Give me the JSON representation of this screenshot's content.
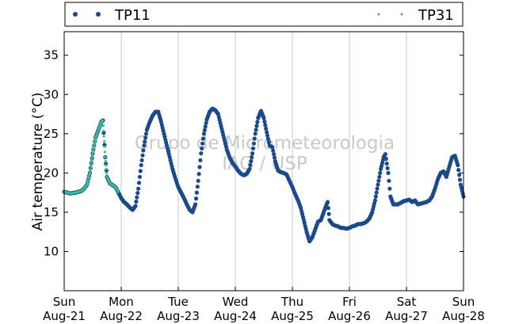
{
  "chart_data": {
    "type": "scatter",
    "ylabel": "Air temperature (°C)",
    "ylim": [
      5,
      38
    ],
    "xlim_days": [
      0,
      7
    ],
    "yticks": [
      10,
      15,
      20,
      25,
      30,
      35
    ],
    "xticks": [
      {
        "day": 0,
        "weekday": "Sun",
        "date": "Aug-21"
      },
      {
        "day": 1,
        "weekday": "Mon",
        "date": "Aug-22"
      },
      {
        "day": 2,
        "weekday": "Tue",
        "date": "Aug-23"
      },
      {
        "day": 3,
        "weekday": "Wed",
        "date": "Aug-24"
      },
      {
        "day": 4,
        "weekday": "Thu",
        "date": "Aug-25"
      },
      {
        "day": 5,
        "weekday": "Fri",
        "date": "Aug-26"
      },
      {
        "day": 6,
        "weekday": "Sat",
        "date": "Aug-27"
      },
      {
        "day": 7,
        "weekday": "Sun",
        "date": "Aug-28"
      }
    ],
    "grid": "vertical",
    "legend_placement": "top",
    "watermark": [
      "Grupo de Micrometeorologia",
      "IAG / USP"
    ],
    "series": [
      {
        "name": "TP11",
        "color": "#1a4a8a",
        "marker": "circle",
        "points": [
          [
            0.0,
            17.6
          ],
          [
            0.1,
            17.4
          ],
          [
            0.2,
            17.5
          ],
          [
            0.3,
            17.7
          ],
          [
            0.35,
            18.0
          ],
          [
            0.4,
            18.5
          ],
          [
            0.45,
            20.0
          ],
          [
            0.5,
            22.5
          ],
          [
            0.55,
            24.5
          ],
          [
            0.6,
            25.5
          ],
          [
            0.65,
            26.5
          ],
          [
            0.68,
            26.7
          ],
          [
            0.72,
            22.0
          ],
          [
            0.75,
            19.5
          ],
          [
            0.8,
            18.7
          ],
          [
            0.9,
            18.2
          ],
          [
            0.95,
            17.5
          ],
          [
            1.0,
            16.8
          ],
          [
            1.05,
            16.3
          ],
          [
            1.1,
            16.0
          ],
          [
            1.15,
            15.6
          ],
          [
            1.2,
            15.3
          ],
          [
            1.25,
            15.8
          ],
          [
            1.3,
            18.0
          ],
          [
            1.35,
            21.0
          ],
          [
            1.4,
            23.5
          ],
          [
            1.45,
            25.5
          ],
          [
            1.5,
            26.5
          ],
          [
            1.55,
            27.3
          ],
          [
            1.6,
            27.8
          ],
          [
            1.65,
            27.8
          ],
          [
            1.7,
            26.5
          ],
          [
            1.75,
            25.0
          ],
          [
            1.8,
            23.5
          ],
          [
            1.85,
            22.0
          ],
          [
            1.9,
            20.5
          ],
          [
            1.95,
            19.3
          ],
          [
            2.0,
            18.2
          ],
          [
            2.05,
            17.5
          ],
          [
            2.1,
            16.8
          ],
          [
            2.15,
            16.0
          ],
          [
            2.2,
            15.3
          ],
          [
            2.25,
            15.0
          ],
          [
            2.3,
            16.0
          ],
          [
            2.35,
            19.0
          ],
          [
            2.4,
            22.5
          ],
          [
            2.45,
            25.0
          ],
          [
            2.5,
            26.8
          ],
          [
            2.55,
            27.8
          ],
          [
            2.6,
            28.2
          ],
          [
            2.65,
            28.0
          ],
          [
            2.7,
            27.5
          ],
          [
            2.75,
            26.0
          ],
          [
            2.8,
            24.5
          ],
          [
            2.85,
            23.0
          ],
          [
            2.9,
            22.0
          ],
          [
            2.95,
            21.3
          ],
          [
            3.0,
            20.8
          ],
          [
            3.05,
            20.3
          ],
          [
            3.1,
            19.9
          ],
          [
            3.15,
            19.7
          ],
          [
            3.2,
            19.9
          ],
          [
            3.25,
            20.5
          ],
          [
            3.3,
            22.5
          ],
          [
            3.35,
            25.0
          ],
          [
            3.4,
            27.0
          ],
          [
            3.45,
            27.9
          ],
          [
            3.5,
            27.0
          ],
          [
            3.55,
            25.2
          ],
          [
            3.6,
            23.5
          ],
          [
            3.65,
            23.3
          ],
          [
            3.7,
            21.5
          ],
          [
            3.75,
            20.3
          ],
          [
            3.8,
            20.1
          ],
          [
            3.85,
            20.0
          ],
          [
            3.9,
            19.8
          ],
          [
            3.95,
            19.0
          ],
          [
            4.0,
            18.2
          ],
          [
            4.05,
            17.3
          ],
          [
            4.1,
            16.5
          ],
          [
            4.15,
            15.5
          ],
          [
            4.2,
            14.0
          ],
          [
            4.25,
            12.5
          ],
          [
            4.3,
            11.3
          ],
          [
            4.35,
            11.8
          ],
          [
            4.4,
            12.8
          ],
          [
            4.45,
            13.8
          ],
          [
            4.5,
            14.0
          ],
          [
            4.55,
            15.0
          ],
          [
            4.6,
            16.0
          ],
          [
            4.62,
            16.3
          ],
          [
            4.65,
            14.0
          ],
          [
            4.7,
            13.5
          ],
          [
            4.75,
            13.3
          ],
          [
            4.8,
            13.2
          ],
          [
            4.85,
            13.0
          ],
          [
            4.9,
            13.0
          ],
          [
            4.95,
            12.9
          ],
          [
            5.0,
            13.0
          ],
          [
            5.05,
            13.2
          ],
          [
            5.1,
            13.3
          ],
          [
            5.15,
            13.5
          ],
          [
            5.2,
            13.5
          ],
          [
            5.25,
            13.6
          ],
          [
            5.3,
            13.8
          ],
          [
            5.35,
            14.2
          ],
          [
            5.4,
            15.0
          ],
          [
            5.45,
            16.5
          ],
          [
            5.5,
            18.5
          ],
          [
            5.55,
            20.5
          ],
          [
            5.6,
            22.0
          ],
          [
            5.63,
            22.4
          ],
          [
            5.68,
            20.0
          ],
          [
            5.72,
            17.0
          ],
          [
            5.77,
            16.0
          ],
          [
            5.85,
            16.0
          ],
          [
            5.9,
            16.2
          ],
          [
            5.95,
            16.4
          ],
          [
            6.0,
            16.5
          ],
          [
            6.05,
            16.6
          ],
          [
            6.1,
            16.3
          ],
          [
            6.15,
            16.5
          ],
          [
            6.2,
            16.0
          ],
          [
            6.3,
            16.2
          ],
          [
            6.35,
            16.3
          ],
          [
            6.4,
            16.5
          ],
          [
            6.45,
            17.0
          ],
          [
            6.5,
            18.0
          ],
          [
            6.55,
            19.2
          ],
          [
            6.6,
            20.0
          ],
          [
            6.65,
            20.2
          ],
          [
            6.7,
            19.5
          ],
          [
            6.75,
            20.8
          ],
          [
            6.8,
            22.0
          ],
          [
            6.85,
            22.2
          ],
          [
            6.9,
            21.0
          ],
          [
            6.95,
            18.5
          ],
          [
            7.0,
            17.0
          ],
          [
            7.05,
            16.5
          ]
        ]
      },
      {
        "name": "TP31",
        "color": "#3fb893",
        "marker": "point",
        "points": [
          [
            0.0,
            17.6
          ],
          [
            0.1,
            17.4
          ],
          [
            0.2,
            17.5
          ],
          [
            0.3,
            17.7
          ],
          [
            0.35,
            18.0
          ],
          [
            0.4,
            18.5
          ],
          [
            0.45,
            20.0
          ],
          [
            0.5,
            22.5
          ],
          [
            0.55,
            24.5
          ],
          [
            0.6,
            25.5
          ],
          [
            0.65,
            26.5
          ],
          [
            0.68,
            26.7
          ],
          [
            0.72,
            22.0
          ],
          [
            0.75,
            19.5
          ],
          [
            0.8,
            18.7
          ],
          [
            0.9,
            18.2
          ],
          [
            0.95,
            17.5
          ]
        ]
      }
    ]
  }
}
